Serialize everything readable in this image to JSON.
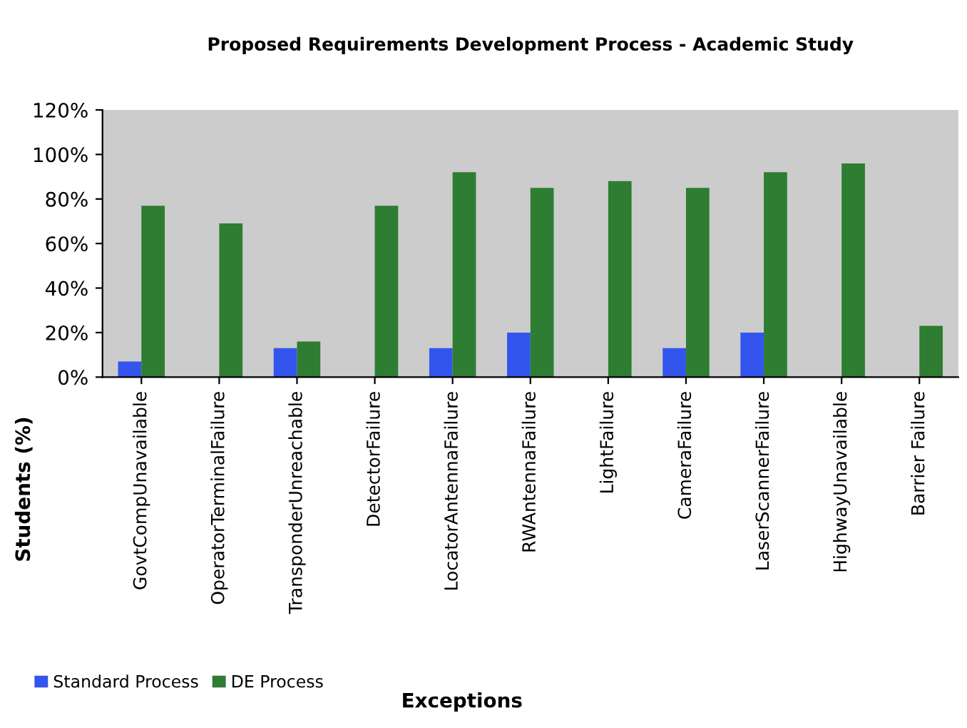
{
  "chart_data": {
    "type": "bar",
    "title": "Proposed Requirements Development Process - Academic Study",
    "xlabel": "Exceptions",
    "ylabel": "Students (%)",
    "categories": [
      "GovtCompUnavailable",
      "OperatorTerminalFailure",
      "TransponderUnreachable",
      "DetectorFailure",
      "LocatorAntennaFailure",
      "RWAntennaFailure",
      "LightFailure",
      "CameraFailure",
      "LaserScannerFailure",
      "HighwayUnavailable",
      "Barrier Failure"
    ],
    "series": [
      {
        "name": "Standard Process",
        "color": "#3355ee",
        "values": [
          7,
          0,
          13,
          0,
          13,
          20,
          0,
          13,
          20,
          0,
          0
        ]
      },
      {
        "name": "DE Process",
        "color": "#2e7d32",
        "values": [
          77,
          69,
          16,
          77,
          92,
          85,
          88,
          85,
          92,
          96,
          23
        ]
      }
    ],
    "ylim": [
      0,
      120
    ],
    "yticks": [
      {
        "value": 0,
        "label": "0%"
      },
      {
        "value": 20,
        "label": "20%"
      },
      {
        "value": 40,
        "label": "40%"
      },
      {
        "value": 60,
        "label": "60%"
      },
      {
        "value": 80,
        "label": "80%"
      },
      {
        "value": 100,
        "label": "100%"
      },
      {
        "value": 120,
        "label": "120%"
      }
    ],
    "grid": false,
    "legend": "bottom left"
  }
}
